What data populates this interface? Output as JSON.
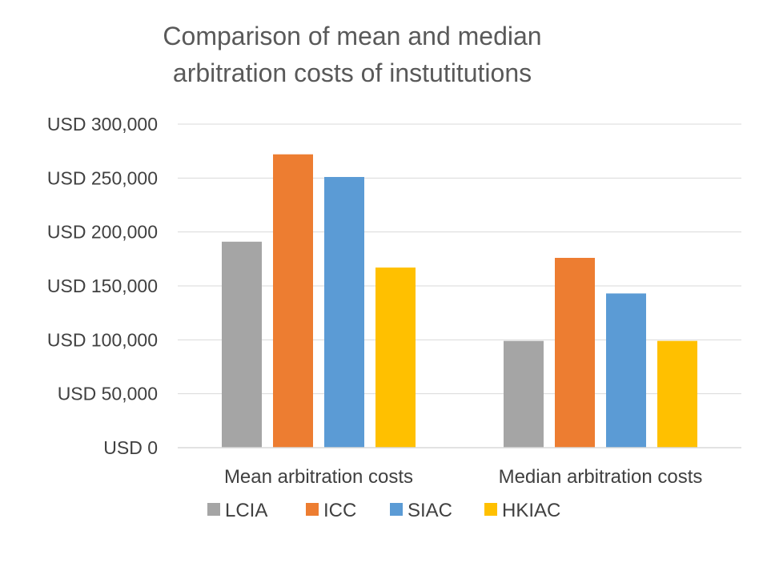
{
  "chart_data": {
    "type": "bar",
    "title": "Comparison of mean and median arbitration costs of instutitutions",
    "title_lines": [
      "Comparison of mean and median",
      "arbitration costs of instutitutions"
    ],
    "categories": [
      "Mean arbitration costs",
      "Median arbitration costs"
    ],
    "series": [
      {
        "name": "LCIA",
        "color": "#a5a5a5",
        "values": [
          191000,
          99000
        ]
      },
      {
        "name": "ICC",
        "color": "#ed7d31",
        "values": [
          272000,
          176000
        ]
      },
      {
        "name": "SIAC",
        "color": "#5b9bd5",
        "values": [
          251000,
          143000
        ]
      },
      {
        "name": "HKIAC",
        "color": "#ffc000",
        "values": [
          167000,
          99000
        ]
      }
    ],
    "ylim": [
      0,
      300000
    ],
    "yticks": [
      0,
      50000,
      100000,
      150000,
      200000,
      250000,
      300000
    ],
    "ytick_labels": [
      "USD 0",
      "USD 50,000",
      "USD 100,000",
      "USD 150,000",
      "USD 200,000",
      "USD 250,000",
      "USD 300,000"
    ],
    "xlabel": "",
    "ylabel": "",
    "grid": true,
    "legend_position": "bottom"
  }
}
